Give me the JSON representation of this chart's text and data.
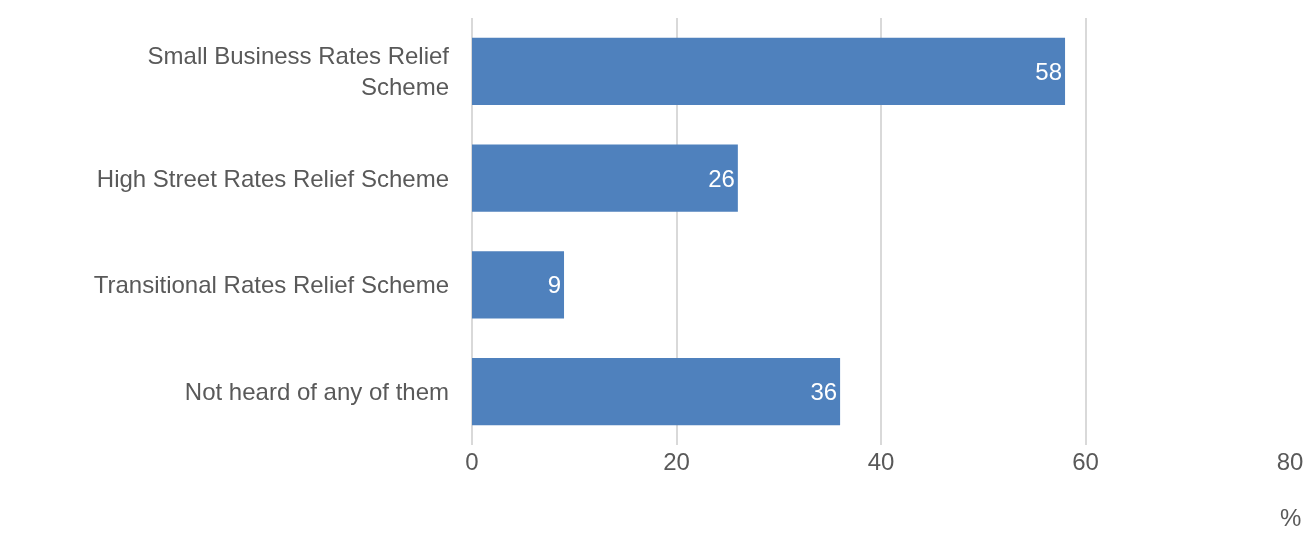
{
  "chart_data": {
    "type": "bar",
    "orientation": "horizontal",
    "categories": [
      "Small Business Rates Relief Scheme",
      "High Street Rates Relief Scheme",
      "Transitional Rates Relief Scheme",
      "Not heard of any of them"
    ],
    "values": [
      58,
      26,
      9,
      36
    ],
    "color": "#4f81bd",
    "xlim": [
      0,
      80
    ],
    "xticks": [
      0,
      20,
      40,
      60,
      80
    ],
    "xlabel": "%",
    "grid": "x",
    "data_labels": true
  }
}
